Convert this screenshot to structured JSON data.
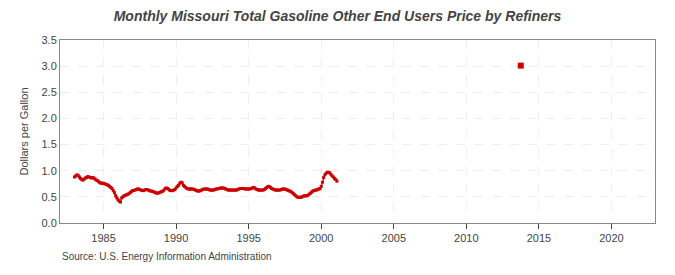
{
  "chart_data": {
    "type": "line",
    "title": "Monthly Missouri Total Gasoline Other End Users Price by Refiners",
    "ylabel": "Dollars per Gallon",
    "annotations": [
      "Source: U.S. Energy Information Administration"
    ],
    "xlim": [
      1982,
      2023
    ],
    "ylim": [
      0.0,
      3.5
    ],
    "xticks": [
      1985,
      1990,
      1995,
      2000,
      2005,
      2010,
      2015,
      2020
    ],
    "yticks": [
      {
        "value": 0.0,
        "label": "0.0"
      },
      0.5,
      {
        "value": 1.0,
        "label": "1.0"
      },
      1.5,
      {
        "value": 2.0,
        "label": "2.0"
      },
      2.5,
      {
        "value": 3.0,
        "label": "3.0"
      },
      3.5
    ],
    "grid": true,
    "series": [
      {
        "type": "line",
        "color": "#cc0000",
        "marker": "square",
        "line_style": "solid",
        "x": [
          1983.0,
          1983.083,
          1983.167,
          1983.25,
          1983.333,
          1983.417,
          1983.5,
          1983.583,
          1983.667,
          1983.75,
          1983.833,
          1983.917,
          1984.0,
          1984.083,
          1984.167,
          1984.25,
          1984.333,
          1984.417,
          1984.5,
          1984.583,
          1984.667,
          1984.75,
          1984.833,
          1984.917,
          1985.0,
          1985.083,
          1985.167,
          1985.25,
          1985.333,
          1985.417,
          1985.5,
          1985.583,
          1985.667,
          1985.75,
          1985.833,
          1985.917,
          1986.0,
          1986.083,
          1986.167,
          1986.25,
          1986.333,
          1986.417,
          1986.5,
          1986.583,
          1986.667,
          1986.75,
          1986.833,
          1986.917,
          1987.0,
          1987.083,
          1987.167,
          1987.25,
          1987.333,
          1987.417,
          1987.5,
          1987.583,
          1987.667,
          1987.75,
          1987.833,
          1987.917,
          1988.0,
          1988.083,
          1988.167,
          1988.25,
          1988.333,
          1988.417,
          1988.5,
          1988.583,
          1988.667,
          1988.75,
          1988.833,
          1988.917,
          1989.0,
          1989.083,
          1989.167,
          1989.25,
          1989.333,
          1989.417,
          1989.5,
          1989.583,
          1989.667,
          1989.75,
          1989.833,
          1989.917,
          1990.0,
          1990.083,
          1990.167,
          1990.25,
          1990.333,
          1990.417,
          1990.5,
          1990.583,
          1990.667,
          1990.75,
          1990.833,
          1990.917,
          1991.0,
          1991.083,
          1991.167,
          1991.25,
          1991.333,
          1991.417,
          1991.5,
          1991.583,
          1991.667,
          1991.75,
          1991.833,
          1991.917,
          1992.0,
          1992.083,
          1992.167,
          1992.25,
          1992.333,
          1992.417,
          1992.5,
          1992.583,
          1992.667,
          1992.75,
          1992.833,
          1992.917,
          1993.0,
          1993.083,
          1993.167,
          1993.25,
          1993.333,
          1993.417,
          1993.5,
          1993.583,
          1993.667,
          1993.75,
          1993.833,
          1993.917,
          1994.0,
          1994.083,
          1994.167,
          1994.25,
          1994.333,
          1994.417,
          1994.5,
          1994.583,
          1994.667,
          1994.75,
          1994.833,
          1994.917,
          1995.0,
          1995.083,
          1995.167,
          1995.25,
          1995.333,
          1995.417,
          1995.5,
          1995.583,
          1995.667,
          1995.75,
          1995.833,
          1995.917,
          1996.0,
          1996.083,
          1996.167,
          1996.25,
          1996.333,
          1996.417,
          1996.5,
          1996.583,
          1996.667,
          1996.75,
          1996.833,
          1996.917,
          1997.0,
          1997.083,
          1997.167,
          1997.25,
          1997.333,
          1997.417,
          1997.5,
          1997.583,
          1997.667,
          1997.75,
          1997.833,
          1997.917,
          1998.0,
          1998.083,
          1998.167,
          1998.25,
          1998.333,
          1998.417,
          1998.5,
          1998.583,
          1998.667,
          1998.75,
          1998.833,
          1998.917,
          1999.0,
          1999.083,
          1999.167,
          1999.25,
          1999.333,
          1999.417,
          1999.5,
          1999.583,
          1999.667,
          1999.75,
          1999.833,
          1999.917,
          2000.0,
          2000.083,
          2000.167,
          2000.25,
          2000.333,
          2000.417,
          2000.5,
          2000.583,
          2000.667,
          2000.75,
          2000.833,
          2000.917,
          2001.0,
          2001.083
        ],
        "values": [
          0.88,
          0.9,
          0.92,
          0.91,
          0.88,
          0.85,
          0.83,
          0.82,
          0.84,
          0.86,
          0.87,
          0.89,
          0.88,
          0.87,
          0.86,
          0.87,
          0.86,
          0.84,
          0.82,
          0.81,
          0.79,
          0.77,
          0.76,
          0.76,
          0.76,
          0.75,
          0.74,
          0.73,
          0.72,
          0.7,
          0.68,
          0.66,
          0.62,
          0.58,
          0.52,
          0.48,
          0.44,
          0.42,
          0.4,
          0.48,
          0.5,
          0.52,
          0.53,
          0.54,
          0.55,
          0.56,
          0.58,
          0.6,
          0.62,
          0.62,
          0.63,
          0.64,
          0.65,
          0.65,
          0.64,
          0.63,
          0.62,
          0.62,
          0.63,
          0.64,
          0.64,
          0.63,
          0.62,
          0.61,
          0.61,
          0.6,
          0.59,
          0.58,
          0.57,
          0.57,
          0.58,
          0.59,
          0.6,
          0.61,
          0.63,
          0.66,
          0.67,
          0.66,
          0.64,
          0.62,
          0.62,
          0.62,
          0.63,
          0.64,
          0.67,
          0.7,
          0.72,
          0.76,
          0.78,
          0.77,
          0.72,
          0.7,
          0.68,
          0.66,
          0.65,
          0.65,
          0.65,
          0.65,
          0.65,
          0.64,
          0.63,
          0.62,
          0.61,
          0.61,
          0.62,
          0.63,
          0.64,
          0.65,
          0.65,
          0.65,
          0.65,
          0.64,
          0.63,
          0.63,
          0.63,
          0.63,
          0.64,
          0.65,
          0.65,
          0.66,
          0.66,
          0.67,
          0.67,
          0.67,
          0.66,
          0.65,
          0.64,
          0.63,
          0.63,
          0.63,
          0.63,
          0.63,
          0.63,
          0.63,
          0.63,
          0.64,
          0.65,
          0.66,
          0.66,
          0.66,
          0.66,
          0.65,
          0.65,
          0.65,
          0.65,
          0.65,
          0.66,
          0.67,
          0.68,
          0.67,
          0.65,
          0.64,
          0.63,
          0.63,
          0.63,
          0.63,
          0.63,
          0.64,
          0.66,
          0.68,
          0.7,
          0.7,
          0.68,
          0.66,
          0.65,
          0.64,
          0.63,
          0.63,
          0.63,
          0.63,
          0.63,
          0.64,
          0.65,
          0.65,
          0.65,
          0.64,
          0.63,
          0.62,
          0.61,
          0.6,
          0.58,
          0.56,
          0.54,
          0.52,
          0.5,
          0.49,
          0.49,
          0.49,
          0.5,
          0.51,
          0.52,
          0.52,
          0.52,
          0.53,
          0.55,
          0.57,
          0.59,
          0.61,
          0.62,
          0.63,
          0.63,
          0.64,
          0.65,
          0.66,
          0.7,
          0.78,
          0.87,
          0.92,
          0.95,
          0.97,
          0.97,
          0.96,
          0.93,
          0.9,
          0.88,
          0.85,
          0.83,
          0.8
        ]
      },
      {
        "type": "scatter",
        "color": "#cc0000",
        "marker": "square",
        "x": [
          2013.75
        ],
        "values": [
          3.01
        ]
      }
    ]
  }
}
